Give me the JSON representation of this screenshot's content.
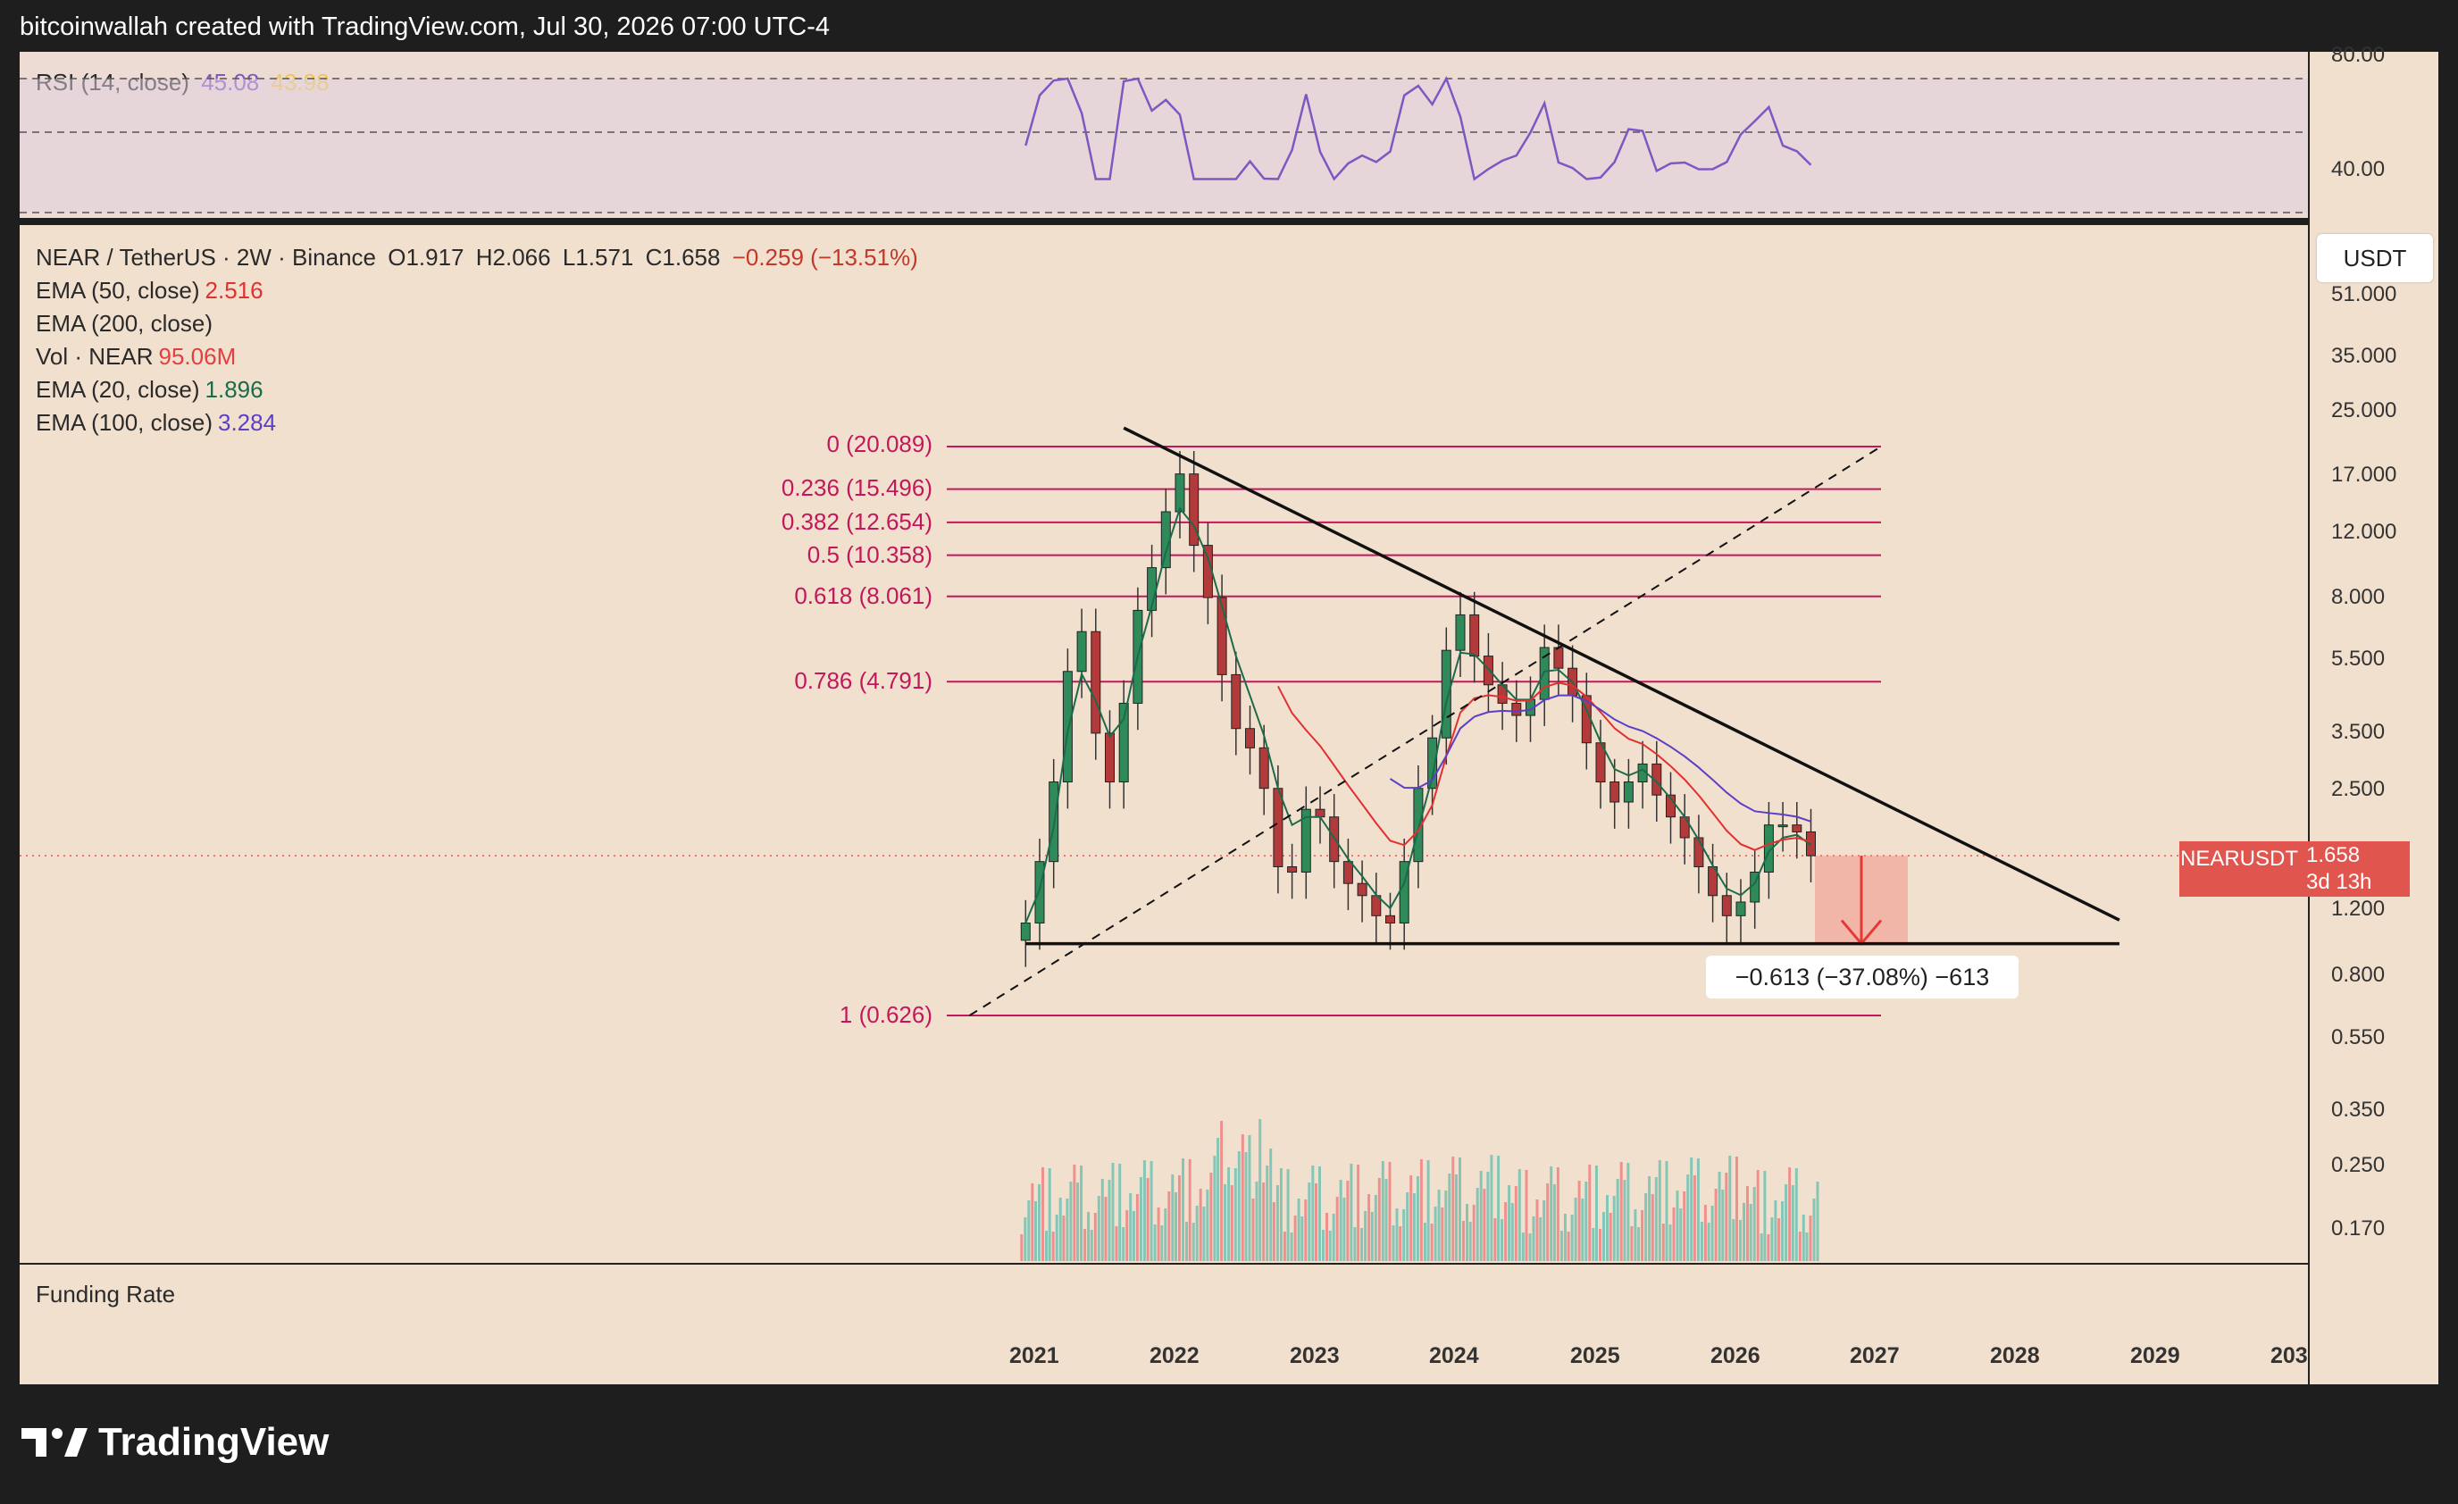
{
  "header": {
    "text": "bitcoinwallah created with TradingView.com, Jul 30, 2026 07:00 UTC-4"
  },
  "rsi": {
    "label": "RSI (14, close)",
    "value": "45.08",
    "ma_value": "43.98",
    "ticks": [
      "80.00",
      "40.00"
    ]
  },
  "legend": {
    "symbol_line": "NEAR / TetherUS · 2W · Binance",
    "ohlc": {
      "o": "O1.917",
      "h": "H2.066",
      "l": "L1.571",
      "c": "C1.658",
      "chg": "−0.259 (−13.51%)"
    },
    "rows": [
      {
        "label": "EMA (50, close)",
        "value": "2.516",
        "color": "#e03030"
      },
      {
        "label": "EMA (200, close)",
        "value": "",
        "color": "#333333"
      },
      {
        "label": "Vol · NEAR",
        "value": "95.06",
        "unit": "M",
        "color": "#e04040"
      },
      {
        "label": "EMA (20, close)",
        "value": "1.896",
        "color": "#1b6b4a"
      },
      {
        "label": "EMA (100, close)",
        "value": "3.284",
        "color": "#5b3fc4"
      }
    ]
  },
  "price_axis": {
    "currency": "USDT",
    "ticks": [
      "51.000",
      "35.000",
      "25.000",
      "17.000",
      "12.000",
      "8.000",
      "5.500",
      "3.500",
      "2.500",
      "1.200",
      "0.800",
      "0.550",
      "0.350",
      "0.250",
      "0.170"
    ]
  },
  "price_badge": {
    "symbol": "NEARUSDT",
    "price": "1.658",
    "countdown": "3d 13h"
  },
  "measure": {
    "text": "−0.613 (−37.08%) −613"
  },
  "funding": {
    "label": "Funding Rate"
  },
  "time_axis": {
    "ticks": [
      "2021",
      "2022",
      "2023",
      "2024",
      "2025",
      "2026",
      "2027",
      "2028",
      "2029",
      "203"
    ]
  },
  "logo": {
    "text": "TradingView"
  },
  "colors": {
    "up": "#22ab94",
    "down": "#f23645",
    "fib": "#c2185b",
    "ema20": "#1b6b4a",
    "ema50": "#e03030",
    "ema100": "#5b3fc4",
    "rsi": "#7e57c2",
    "rsi_ma": "#f0c850"
  },
  "chart_data": {
    "type": "candlestick",
    "title": "NEAR / TetherUS · 2W · Binance",
    "y_scale": "log",
    "fib_levels": [
      {
        "ratio": "0",
        "price": 20.089,
        "label": "0 (20.089)"
      },
      {
        "ratio": "0.236",
        "price": 15.496,
        "label": "0.236 (15.496)"
      },
      {
        "ratio": "0.382",
        "price": 12.654,
        "label": "0.382 (12.654)"
      },
      {
        "ratio": "0.5",
        "price": 10.358,
        "label": "0.5 (10.358)"
      },
      {
        "ratio": "0.618",
        "price": 8.061,
        "label": "0.618 (8.061)"
      },
      {
        "ratio": "0.786",
        "price": 4.791,
        "label": "0.786 (4.791)"
      },
      {
        "ratio": "1",
        "price": 0.626,
        "label": "1 (0.626)"
      }
    ],
    "series": [
      {
        "name": "NEAR/USDT",
        "x": [
          2020.9,
          2021.0,
          2021.1,
          2021.2,
          2021.3,
          2021.4,
          2021.5,
          2021.6,
          2021.7,
          2021.8,
          2021.9,
          2022.0,
          2022.1,
          2022.2,
          2022.3,
          2022.4,
          2022.5,
          2022.6,
          2022.7,
          2022.8,
          2022.9,
          2023.0,
          2023.1,
          2023.2,
          2023.3,
          2023.4,
          2023.5,
          2023.6,
          2023.7,
          2023.8,
          2023.9,
          2024.0,
          2024.1,
          2024.2,
          2024.3,
          2024.4,
          2024.5,
          2024.6,
          2024.7,
          2024.8,
          2024.9,
          2025.0,
          2025.1,
          2025.2,
          2025.3,
          2025.4,
          2025.5,
          2025.6,
          2025.7,
          2025.8,
          2025.9,
          2026.0,
          2026.1,
          2026.2,
          2026.3,
          2026.4,
          2026.5
        ],
        "close": [
          1.1,
          1.6,
          2.6,
          5.1,
          6.5,
          3.5,
          2.6,
          4.2,
          7.4,
          9.6,
          13.5,
          17.0,
          11.0,
          8.0,
          5.0,
          3.6,
          3.2,
          2.5,
          1.55,
          1.5,
          2.2,
          2.1,
          1.6,
          1.4,
          1.3,
          1.15,
          1.1,
          1.6,
          2.5,
          3.4,
          5.8,
          7.2,
          5.6,
          4.7,
          4.2,
          3.9,
          4.3,
          5.9,
          5.2,
          4.4,
          3.3,
          2.6,
          2.3,
          2.6,
          2.9,
          2.4,
          2.1,
          1.85,
          1.55,
          1.3,
          1.15,
          1.25,
          1.5,
          2.0,
          2.0,
          1.917,
          1.658
        ]
      },
      {
        "name": "EMA (20, close)",
        "y_last": 1.896
      },
      {
        "name": "EMA (50, close)",
        "y_last": 2.516
      },
      {
        "name": "EMA (100, close)",
        "y_last": 3.284
      }
    ],
    "trendlines": [
      {
        "from": {
          "x": 2021.6,
          "y": 22.5
        },
        "to": {
          "x": 2028.7,
          "y": 1.12
        },
        "style": "solid"
      },
      {
        "from": {
          "x": 2020.9,
          "y": 0.97
        },
        "to": {
          "x": 2028.7,
          "y": 0.97
        },
        "style": "solid"
      },
      {
        "from": {
          "x": 2020.5,
          "y": 0.626
        },
        "to": {
          "x": 2027.0,
          "y": 20.089
        },
        "style": "dashed"
      }
    ],
    "volume_unit": "M"
  }
}
